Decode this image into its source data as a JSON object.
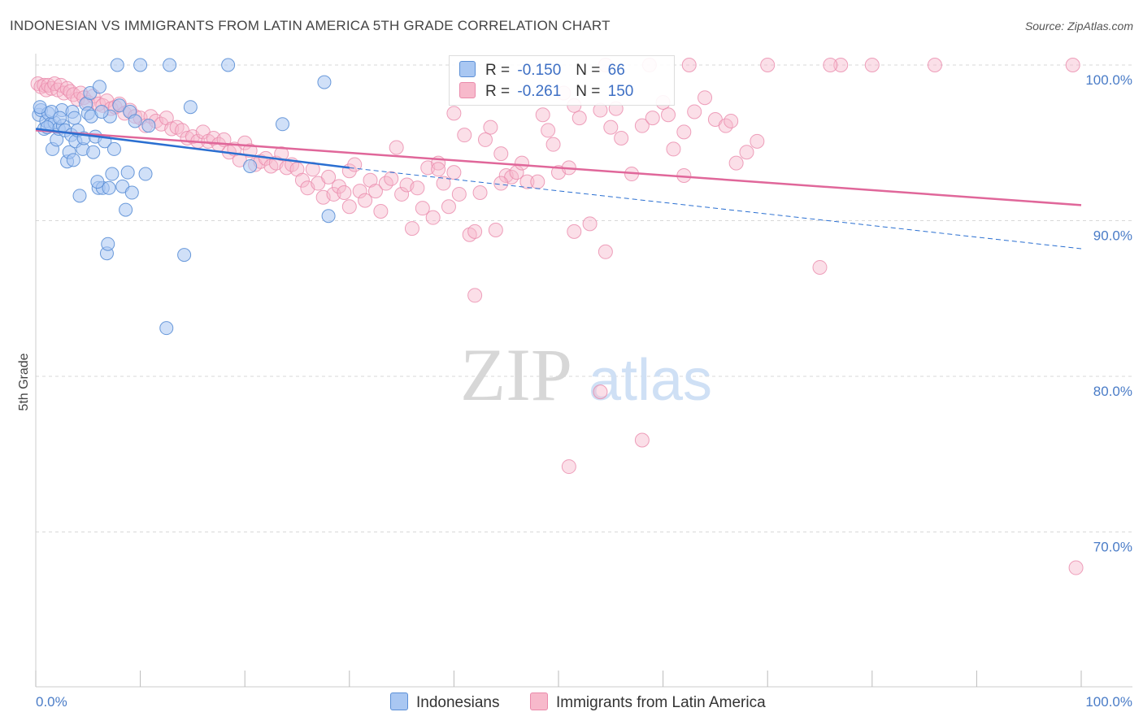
{
  "title": "INDONESIAN VS IMMIGRANTS FROM LATIN AMERICA 5TH GRADE CORRELATION CHART",
  "source": "Source: ZipAtlas.com",
  "watermark": {
    "zip": "ZIP",
    "atlas": "atlas"
  },
  "colors": {
    "blue_fill": "#a9c7f2",
    "blue_stroke": "#5b8fd6",
    "blue_line": "#2a6fd1",
    "pink_fill": "#f7b9cb",
    "pink_stroke": "#ea8aab",
    "pink_line": "#e0679a",
    "grid": "#d8d8d8",
    "axis_text": "#4a7cc7"
  },
  "legend": {
    "rows": [
      {
        "r_label": "R =",
        "r_value": "-0.150",
        "n_label": "N =",
        "n_value": "66"
      },
      {
        "r_label": "R =",
        "r_value": "-0.261",
        "n_label": "N =",
        "n_value": "150"
      }
    ]
  },
  "bottom_legend": [
    "Indonesians",
    "Immigrants from Latin America"
  ],
  "chart_data": {
    "type": "scatter",
    "title": "INDONESIAN VS IMMIGRANTS FROM LATIN AMERICA 5TH GRADE CORRELATION CHART",
    "xlabel": "",
    "ylabel": "5th Grade",
    "xlim": [
      0,
      100
    ],
    "ylim": [
      60,
      100.5
    ],
    "x_tick_labels": [
      "0.0%",
      "100.0%"
    ],
    "y_ticks": [
      70,
      80,
      90,
      100
    ],
    "y_tick_labels": [
      "70.0%",
      "80.0%",
      "90.0%",
      "100.0%"
    ],
    "series": [
      {
        "name": "Indonesians",
        "trend": {
          "x": [
            0,
            30
          ],
          "y": [
            95.9,
            93.4
          ],
          "dashed_to": [
            100,
            88.2
          ]
        },
        "points": [
          [
            0.3,
            96.8
          ],
          [
            0.5,
            97.1
          ],
          [
            0.8,
            95.9
          ],
          [
            1.0,
            96.4
          ],
          [
            1.2,
            96.9
          ],
          [
            1.4,
            96.2
          ],
          [
            1.6,
            94.6
          ],
          [
            1.8,
            96.3
          ],
          [
            2.0,
            95.2
          ],
          [
            2.2,
            95.9
          ],
          [
            2.5,
            97.1
          ],
          [
            2.6,
            96.1
          ],
          [
            2.8,
            95.8
          ],
          [
            3.0,
            93.8
          ],
          [
            3.2,
            94.4
          ],
          [
            3.4,
            95.5
          ],
          [
            3.5,
            97.0
          ],
          [
            3.6,
            93.9
          ],
          [
            3.8,
            95.1
          ],
          [
            4.0,
            95.8
          ],
          [
            4.2,
            91.6
          ],
          [
            4.5,
            94.6
          ],
          [
            4.6,
            95.3
          ],
          [
            4.8,
            97.5
          ],
          [
            5.0,
            96.9
          ],
          [
            5.2,
            98.2
          ],
          [
            5.3,
            96.7
          ],
          [
            5.5,
            94.4
          ],
          [
            5.7,
            95.4
          ],
          [
            6.0,
            92.1
          ],
          [
            6.1,
            98.6
          ],
          [
            6.4,
            92.1
          ],
          [
            6.6,
            95.1
          ],
          [
            6.8,
            87.9
          ],
          [
            6.9,
            88.5
          ],
          [
            7.0,
            92.1
          ],
          [
            7.3,
            93.0
          ],
          [
            7.5,
            94.6
          ],
          [
            7.8,
            100.0
          ],
          [
            8.0,
            97.4
          ],
          [
            8.3,
            92.2
          ],
          [
            8.6,
            90.7
          ],
          [
            8.8,
            93.1
          ],
          [
            9.0,
            97.0
          ],
          [
            9.2,
            91.8
          ],
          [
            10.0,
            100.0
          ],
          [
            10.5,
            93.0
          ],
          [
            10.8,
            96.1
          ],
          [
            12.5,
            83.1
          ],
          [
            12.8,
            100.0
          ],
          [
            14.2,
            87.8
          ],
          [
            14.8,
            97.3
          ],
          [
            18.4,
            100.0
          ],
          [
            20.5,
            93.5
          ],
          [
            23.6,
            96.2
          ],
          [
            27.6,
            98.9
          ],
          [
            28.0,
            90.3
          ],
          [
            0.4,
            97.3
          ],
          [
            1.1,
            96.0
          ],
          [
            1.5,
            97.0
          ],
          [
            2.3,
            96.6
          ],
          [
            3.7,
            96.6
          ],
          [
            5.9,
            92.5
          ],
          [
            7.1,
            96.7
          ],
          [
            9.5,
            96.4
          ],
          [
            6.3,
            97.0
          ]
        ]
      },
      {
        "name": "Immigrants from Latin America",
        "trend": {
          "x": [
            0,
            100
          ],
          "y": [
            95.8,
            91.0
          ]
        },
        "points": [
          [
            0.2,
            98.8
          ],
          [
            0.5,
            98.6
          ],
          [
            0.8,
            98.7
          ],
          [
            1.0,
            98.4
          ],
          [
            1.2,
            98.7
          ],
          [
            1.5,
            98.5
          ],
          [
            1.8,
            98.8
          ],
          [
            2.1,
            98.4
          ],
          [
            2.4,
            98.7
          ],
          [
            2.7,
            98.2
          ],
          [
            3.0,
            98.5
          ],
          [
            3.3,
            98.3
          ],
          [
            3.6,
            98.1
          ],
          [
            4.0,
            97.8
          ],
          [
            4.3,
            98.2
          ],
          [
            4.6,
            97.9
          ],
          [
            5.0,
            97.6
          ],
          [
            5.5,
            98.0
          ],
          [
            6.0,
            97.5
          ],
          [
            6.4,
            97.4
          ],
          [
            6.8,
            97.7
          ],
          [
            7.2,
            97.2
          ],
          [
            7.6,
            97.3
          ],
          [
            8.0,
            97.5
          ],
          [
            8.5,
            96.9
          ],
          [
            9.0,
            97.1
          ],
          [
            9.5,
            96.7
          ],
          [
            10.0,
            96.6
          ],
          [
            10.5,
            96.1
          ],
          [
            11.0,
            96.7
          ],
          [
            11.5,
            96.4
          ],
          [
            12.0,
            96.2
          ],
          [
            12.5,
            96.6
          ],
          [
            13.0,
            95.9
          ],
          [
            13.5,
            96.0
          ],
          [
            14.0,
            95.8
          ],
          [
            14.5,
            95.3
          ],
          [
            15.0,
            95.4
          ],
          [
            15.5,
            95.1
          ],
          [
            16.0,
            95.7
          ],
          [
            16.5,
            95.1
          ],
          [
            17.0,
            95.3
          ],
          [
            17.5,
            94.9
          ],
          [
            18.0,
            95.2
          ],
          [
            18.5,
            94.4
          ],
          [
            19.0,
            94.6
          ],
          [
            19.5,
            93.9
          ],
          [
            20.0,
            95.0
          ],
          [
            20.5,
            94.5
          ],
          [
            21.0,
            93.6
          ],
          [
            21.5,
            93.8
          ],
          [
            22.0,
            94.0
          ],
          [
            22.5,
            93.5
          ],
          [
            23.0,
            93.7
          ],
          [
            23.5,
            94.3
          ],
          [
            24.0,
            93.4
          ],
          [
            24.5,
            93.6
          ],
          [
            25.0,
            93.3
          ],
          [
            25.5,
            92.6
          ],
          [
            26.0,
            92.1
          ],
          [
            26.5,
            93.3
          ],
          [
            27.0,
            92.4
          ],
          [
            27.5,
            91.5
          ],
          [
            28.0,
            92.8
          ],
          [
            28.5,
            91.7
          ],
          [
            29.0,
            92.2
          ],
          [
            29.5,
            91.8
          ],
          [
            30.0,
            93.2
          ],
          [
            30.5,
            93.6
          ],
          [
            31.0,
            91.9
          ],
          [
            31.5,
            91.3
          ],
          [
            32.0,
            92.6
          ],
          [
            32.5,
            91.9
          ],
          [
            33.0,
            90.6
          ],
          [
            33.5,
            92.4
          ],
          [
            34.0,
            92.7
          ],
          [
            34.5,
            94.7
          ],
          [
            35.0,
            91.7
          ],
          [
            35.5,
            92.3
          ],
          [
            36.0,
            89.5
          ],
          [
            36.5,
            92.1
          ],
          [
            37.0,
            90.8
          ],
          [
            37.5,
            93.4
          ],
          [
            38.0,
            90.2
          ],
          [
            38.5,
            93.7
          ],
          [
            39.0,
            92.4
          ],
          [
            39.5,
            90.9
          ],
          [
            40.0,
            93.1
          ],
          [
            40.5,
            91.7
          ],
          [
            41.0,
            95.5
          ],
          [
            41.5,
            89.1
          ],
          [
            42.0,
            89.3
          ],
          [
            42.5,
            91.8
          ],
          [
            43.0,
            95.2
          ],
          [
            43.5,
            96.0
          ],
          [
            44.0,
            89.4
          ],
          [
            44.5,
            94.3
          ],
          [
            45.0,
            92.9
          ],
          [
            45.5,
            92.8
          ],
          [
            46.0,
            93.1
          ],
          [
            46.5,
            93.7
          ],
          [
            47.0,
            92.5
          ],
          [
            48.0,
            92.5
          ],
          [
            48.5,
            96.8
          ],
          [
            49.0,
            95.8
          ],
          [
            49.5,
            94.9
          ],
          [
            50.0,
            93.1
          ],
          [
            50.5,
            98.2
          ],
          [
            51.0,
            93.4
          ],
          [
            51.5,
            89.3
          ],
          [
            52.0,
            96.6
          ],
          [
            53.0,
            89.8
          ],
          [
            54.0,
            97.1
          ],
          [
            54.5,
            88.0
          ],
          [
            55.0,
            96.0
          ],
          [
            56.0,
            95.3
          ],
          [
            57.0,
            93.0
          ],
          [
            58.0,
            96.1
          ],
          [
            59.0,
            96.6
          ],
          [
            60.0,
            97.6
          ],
          [
            61.0,
            94.6
          ],
          [
            62.0,
            95.7
          ],
          [
            63.0,
            97.0
          ],
          [
            64.0,
            97.9
          ],
          [
            65.0,
            96.5
          ],
          [
            66.0,
            96.1
          ],
          [
            67.0,
            93.7
          ],
          [
            68.0,
            94.4
          ],
          [
            69.0,
            95.1
          ],
          [
            75.0,
            87.0
          ],
          [
            86.0,
            100.0
          ],
          [
            80.0,
            100.0
          ],
          [
            77.0,
            100.0
          ],
          [
            62.5,
            100.0
          ],
          [
            58.7,
            100.0
          ],
          [
            99.2,
            100.0
          ],
          [
            99.5,
            67.7
          ],
          [
            58.0,
            75.9
          ],
          [
            54.0,
            79.0
          ],
          [
            51.0,
            74.2
          ],
          [
            44.5,
            92.4
          ],
          [
            62.0,
            92.9
          ],
          [
            42.0,
            85.2
          ],
          [
            54.5,
            100.0
          ],
          [
            66.5,
            96.4
          ],
          [
            70.0,
            100.0
          ],
          [
            55.5,
            97.2
          ],
          [
            51.5,
            97.4
          ],
          [
            60.5,
            96.8
          ],
          [
            40.0,
            96.9
          ],
          [
            38.5,
            93.3
          ],
          [
            30.0,
            90.9
          ],
          [
            76.0,
            100.0
          ]
        ]
      }
    ]
  }
}
